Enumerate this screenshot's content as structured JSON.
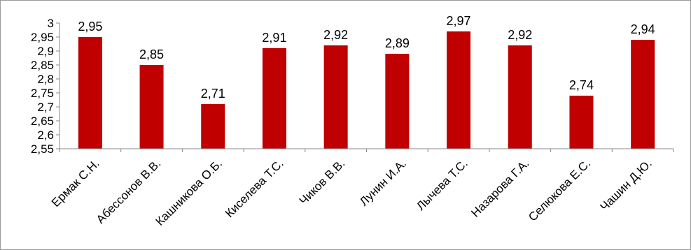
{
  "chart_data": {
    "type": "bar",
    "categories": [
      "Ермак С.Н.",
      "Абессонов В.В.",
      "Кашникова О.Б.",
      "Киселева Т.С.",
      "Чиков В.В.",
      "Лунин И.А.",
      "Лычева Т.С.",
      "Назарова Г.А.",
      "Селюкова Е.С.",
      "Чашин Д.Ю."
    ],
    "values": [
      2.95,
      2.85,
      2.71,
      2.91,
      2.92,
      2.89,
      2.97,
      2.92,
      2.74,
      2.94
    ],
    "data_labels": [
      "2,95",
      "2,85",
      "2,71",
      "2,91",
      "2,92",
      "2,89",
      "2,97",
      "2,92",
      "2,74",
      "2,94"
    ],
    "ylim": [
      2.55,
      3
    ],
    "yticks": [
      2.55,
      2.6,
      2.65,
      2.7,
      2.75,
      2.8,
      2.85,
      2.9,
      2.95,
      3
    ],
    "ytick_labels": [
      "2,55",
      "2,6",
      "2,65",
      "2,7",
      "2,75",
      "2,8",
      "2,85",
      "2,9",
      "2,95",
      "3"
    ],
    "title": "",
    "xlabel": "",
    "ylabel": "",
    "grid": false,
    "legend": "none",
    "bar_color": "#c00000"
  }
}
